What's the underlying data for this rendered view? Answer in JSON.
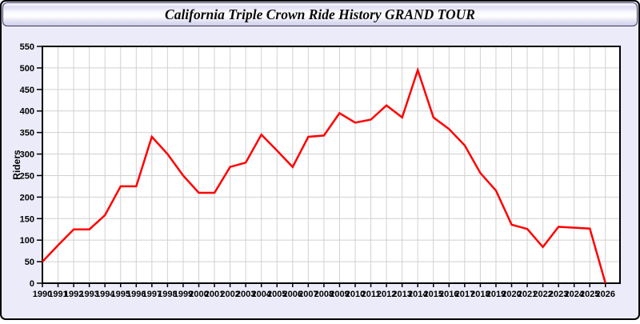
{
  "window": {
    "title": "California Triple Crown Ride History GRAND TOUR"
  },
  "colors": {
    "page_bg": "#ECEBFA",
    "titlebar_border": "#3a3a5e",
    "plot_bg": "#ffffff",
    "grid": "#d1d1d1",
    "axis": "#000000",
    "line": "#ff0000",
    "tick_text": "#000000"
  },
  "chart_data": {
    "type": "line",
    "title": "California Triple Crown Ride History GRAND TOUR",
    "xlabel": "",
    "ylabel": "Riders",
    "x": [
      1990,
      1991,
      1992,
      1993,
      1994,
      1995,
      1996,
      1997,
      1998,
      1999,
      2000,
      2001,
      2002,
      2003,
      2004,
      2005,
      2006,
      2007,
      2008,
      2009,
      2010,
      2011,
      2012,
      2013,
      2014,
      2015,
      2016,
      2017,
      2018,
      2019,
      2020,
      2021,
      2022,
      2023,
      2024,
      2025,
      2026
    ],
    "series": [
      {
        "name": "Riders",
        "color": "#ff0000",
        "values": [
          50,
          88,
          125,
          125,
          158,
          225,
          225,
          340,
          300,
          250,
          210,
          210,
          270,
          280,
          345,
          308,
          270,
          340,
          343,
          395,
          373,
          380,
          413,
          385,
          495,
          385,
          358,
          320,
          256,
          215,
          136,
          126,
          84,
          131,
          129,
          127,
          0
        ]
      }
    ],
    "ylim": [
      0,
      550
    ],
    "yticks": [
      0,
      50,
      100,
      150,
      200,
      250,
      300,
      350,
      400,
      450,
      500,
      550
    ],
    "grid": true,
    "legend": "none"
  }
}
